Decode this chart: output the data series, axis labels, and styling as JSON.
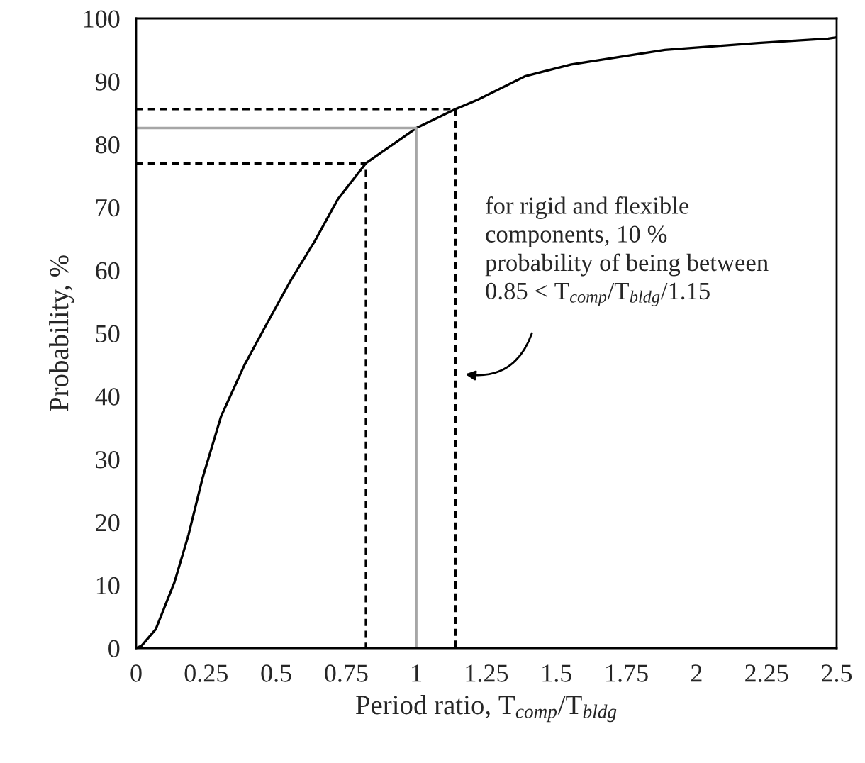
{
  "chart_data": {
    "type": "line",
    "xlabel": "Period ratio, T$_{comp}$/T$_{bldg}$",
    "ylabel": "Probability, %",
    "xlim": [
      0,
      2.5
    ],
    "xticks": [
      0,
      0.25,
      0.5,
      0.75,
      1,
      1.25,
      1.5,
      1.75,
      2,
      2.25,
      2.5
    ],
    "ylim": [
      0,
      100
    ],
    "yticks": [
      0,
      10,
      20,
      30,
      40,
      50,
      60,
      70,
      80,
      90,
      100
    ],
    "grid": false,
    "legend": false,
    "marker": "none",
    "series": [
      {
        "color": "#000000",
        "line_style": "solid",
        "x": [
          0,
          0.02,
          0.07,
          0.137,
          0.187,
          0.237,
          0.303,
          0.387,
          0.47,
          0.553,
          0.637,
          0.72,
          0.82,
          1.0,
          1.14,
          1.22,
          1.387,
          1.553,
          1.887,
          2.22,
          2.47,
          2.5
        ],
        "values": [
          0,
          0.4,
          3,
          10.5,
          18,
          27,
          36.8,
          45,
          51.8,
          58.5,
          64.6,
          71.3,
          77,
          82.6,
          85.6,
          87.1,
          90.8,
          92.7,
          95,
          96.1,
          96.8,
          97
        ]
      },
      {
        "color": "#000000",
        "line_style": "dashed",
        "x": [
          0,
          0.82,
          0.82
        ],
        "values": [
          77,
          77,
          0
        ]
      },
      {
        "color": "#a6a6a6",
        "line_style": "solid",
        "x": [
          0,
          1.0,
          1.0
        ],
        "values": [
          82.6,
          82.6,
          0
        ]
      },
      {
        "color": "#000000",
        "line_style": "dashed",
        "x": [
          0,
          1.14,
          1.14
        ],
        "values": [
          85.6,
          85.6,
          0
        ]
      }
    ],
    "annotations": [
      "for rigid and flexible\ncomponents, 10 %\nprobability of being between\n0.85 < T$_{comp}$/T$_{bldg}$/1.15"
    ]
  }
}
